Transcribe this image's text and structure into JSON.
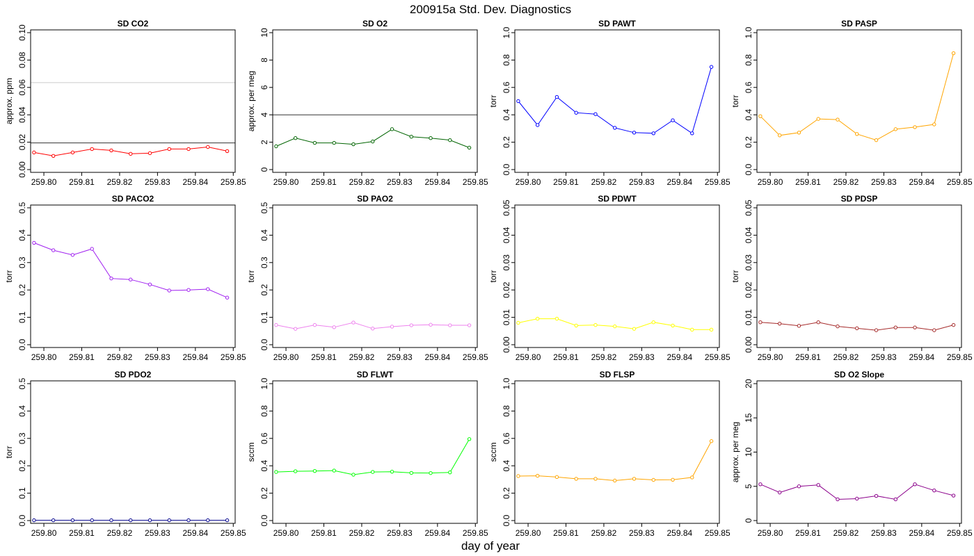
{
  "figure": {
    "title": "200915a   Std. Dev. Diagnostics",
    "xlabel": "day of year"
  },
  "chart_data": [
    {
      "type": "line",
      "title": "SD CO2",
      "ylabel": "approx. ppm",
      "ylim": [
        0,
        0.1
      ],
      "yticks": [
        0,
        0.02,
        0.04,
        0.06,
        0.08,
        0.1
      ],
      "ytick_labels": [
        "0.00",
        "0.02",
        "0.04",
        "0.06",
        "0.08",
        "0.10"
      ],
      "xlim": [
        259.7965,
        259.8505
      ],
      "xticks": [
        259.8,
        259.81,
        259.82,
        259.83,
        259.84,
        259.85
      ],
      "xtick_labels": [
        "259.80",
        "259.81",
        "259.82",
        "259.83",
        "259.84",
        "259.85"
      ],
      "hlines": [
        {
          "y": 0.0195,
          "color": "#333333"
        },
        {
          "y": 0.0635,
          "color": "#cccccc"
        }
      ],
      "series": [
        {
          "color": "#ff0000",
          "x": [
            259.7974,
            259.8025,
            259.8076,
            259.8127,
            259.8178,
            259.8229,
            259.828,
            259.8331,
            259.8382,
            259.8433,
            259.8484
          ],
          "y": [
            0.0125,
            0.01,
            0.0125,
            0.015,
            0.014,
            0.0115,
            0.012,
            0.015,
            0.015,
            0.0165,
            0.0135
          ]
        }
      ]
    },
    {
      "type": "line",
      "title": "SD O2",
      "ylabel": "approx. per meg",
      "ylim": [
        0,
        10
      ],
      "yticks": [
        0,
        2,
        4,
        6,
        8,
        10
      ],
      "ytick_labels": [
        "0",
        "2",
        "4",
        "6",
        "8",
        "10"
      ],
      "xlim": [
        259.7965,
        259.8505
      ],
      "xticks": [
        259.8,
        259.81,
        259.82,
        259.83,
        259.84,
        259.85
      ],
      "xtick_labels": [
        "259.80",
        "259.81",
        "259.82",
        "259.83",
        "259.84",
        "259.85"
      ],
      "hlines": [
        {
          "y": 4,
          "color": "#333333"
        }
      ],
      "series": [
        {
          "color": "#006400",
          "x": [
            259.7974,
            259.8025,
            259.8076,
            259.8127,
            259.8178,
            259.8229,
            259.828,
            259.8331,
            259.8382,
            259.8433,
            259.8484
          ],
          "y": [
            1.7,
            2.3,
            1.95,
            1.95,
            1.85,
            2.05,
            2.95,
            2.4,
            2.3,
            2.15,
            1.6
          ]
        }
      ]
    },
    {
      "type": "line",
      "title": "SD PAWT",
      "ylabel": "torr",
      "ylim": [
        0,
        1
      ],
      "yticks": [
        0,
        0.2,
        0.4,
        0.6,
        0.8,
        1.0
      ],
      "ytick_labels": [
        "0.0",
        "0.2",
        "0.4",
        "0.6",
        "0.8",
        "1.0"
      ],
      "xlim": [
        259.7965,
        259.8505
      ],
      "xticks": [
        259.8,
        259.81,
        259.82,
        259.83,
        259.84,
        259.85
      ],
      "xtick_labels": [
        "259.80",
        "259.81",
        "259.82",
        "259.83",
        "259.84",
        "259.85"
      ],
      "hlines": [],
      "series": [
        {
          "color": "#0000ff",
          "x": [
            259.7974,
            259.8025,
            259.8076,
            259.8127,
            259.8178,
            259.8229,
            259.828,
            259.8331,
            259.8382,
            259.8433,
            259.8484
          ],
          "y": [
            0.5,
            0.325,
            0.53,
            0.415,
            0.405,
            0.305,
            0.27,
            0.265,
            0.36,
            0.265,
            0.75
          ]
        }
      ]
    },
    {
      "type": "line",
      "title": "SD PASP",
      "ylabel": "torr",
      "ylim": [
        0,
        1
      ],
      "yticks": [
        0,
        0.2,
        0.4,
        0.6,
        0.8,
        1.0
      ],
      "ytick_labels": [
        "0.0",
        "0.2",
        "0.4",
        "0.6",
        "0.8",
        "1.0"
      ],
      "xlim": [
        259.7965,
        259.8505
      ],
      "xticks": [
        259.8,
        259.81,
        259.82,
        259.83,
        259.84,
        259.85
      ],
      "xtick_labels": [
        "259.80",
        "259.81",
        "259.82",
        "259.83",
        "259.84",
        "259.85"
      ],
      "hlines": [],
      "series": [
        {
          "color": "#ffa500",
          "x": [
            259.7974,
            259.8025,
            259.8076,
            259.8127,
            259.8178,
            259.8229,
            259.828,
            259.8331,
            259.8382,
            259.8433,
            259.8484
          ],
          "y": [
            0.39,
            0.25,
            0.27,
            0.37,
            0.365,
            0.26,
            0.215,
            0.295,
            0.31,
            0.33,
            0.85
          ]
        }
      ]
    },
    {
      "type": "line",
      "title": "SD PACO2",
      "ylabel": "torr",
      "ylim": [
        0,
        0.5
      ],
      "yticks": [
        0,
        0.1,
        0.2,
        0.3,
        0.4,
        0.5
      ],
      "ytick_labels": [
        "0.0",
        "0.1",
        "0.2",
        "0.3",
        "0.4",
        "0.5"
      ],
      "xlim": [
        259.7965,
        259.8505
      ],
      "xticks": [
        259.8,
        259.81,
        259.82,
        259.83,
        259.84,
        259.85
      ],
      "xtick_labels": [
        "259.80",
        "259.81",
        "259.82",
        "259.83",
        "259.84",
        "259.85"
      ],
      "hlines": [],
      "series": [
        {
          "color": "#a020f0",
          "x": [
            259.7974,
            259.8025,
            259.8076,
            259.8127,
            259.8178,
            259.8229,
            259.828,
            259.8331,
            259.8382,
            259.8433,
            259.8484
          ],
          "y": [
            0.372,
            0.345,
            0.328,
            0.35,
            0.242,
            0.238,
            0.22,
            0.198,
            0.2,
            0.203,
            0.172
          ]
        }
      ]
    },
    {
      "type": "line",
      "title": "SD PAO2",
      "ylabel": "torr",
      "ylim": [
        0,
        0.5
      ],
      "yticks": [
        0,
        0.1,
        0.2,
        0.3,
        0.4,
        0.5
      ],
      "ytick_labels": [
        "0.0",
        "0.1",
        "0.2",
        "0.3",
        "0.4",
        "0.5"
      ],
      "xlim": [
        259.7965,
        259.8505
      ],
      "xticks": [
        259.8,
        259.81,
        259.82,
        259.83,
        259.84,
        259.85
      ],
      "xtick_labels": [
        "259.80",
        "259.81",
        "259.82",
        "259.83",
        "259.84",
        "259.85"
      ],
      "hlines": [],
      "series": [
        {
          "color": "#ee82ee",
          "x": [
            259.7974,
            259.8025,
            259.8076,
            259.8127,
            259.8178,
            259.8229,
            259.828,
            259.8331,
            259.8382,
            259.8433,
            259.8484
          ],
          "y": [
            0.072,
            0.058,
            0.072,
            0.064,
            0.081,
            0.059,
            0.066,
            0.071,
            0.073,
            0.071,
            0.071
          ]
        }
      ]
    },
    {
      "type": "line",
      "title": "SD PDWT",
      "ylabel": "torr",
      "ylim": [
        0,
        0.05
      ],
      "yticks": [
        0,
        0.01,
        0.02,
        0.03,
        0.04,
        0.05
      ],
      "ytick_labels": [
        "0.00",
        "0.01",
        "0.02",
        "0.03",
        "0.04",
        "0.05"
      ],
      "xlim": [
        259.7965,
        259.8505
      ],
      "xticks": [
        259.8,
        259.81,
        259.82,
        259.83,
        259.84,
        259.85
      ],
      "xtick_labels": [
        "259.80",
        "259.81",
        "259.82",
        "259.83",
        "259.84",
        "259.85"
      ],
      "hlines": [],
      "series": [
        {
          "color": "#ffff00",
          "x": [
            259.7974,
            259.8025,
            259.8076,
            259.8127,
            259.8178,
            259.8229,
            259.828,
            259.8331,
            259.8382,
            259.8433,
            259.8484
          ],
          "y": [
            0.008,
            0.0095,
            0.0095,
            0.007,
            0.0072,
            0.0067,
            0.0058,
            0.0082,
            0.007,
            0.0055,
            0.0055
          ]
        }
      ]
    },
    {
      "type": "line",
      "title": "SD PDSP",
      "ylabel": "torr",
      "ylim": [
        0,
        0.05
      ],
      "yticks": [
        0,
        0.01,
        0.02,
        0.03,
        0.04,
        0.05
      ],
      "ytick_labels": [
        "0.00",
        "0.01",
        "0.02",
        "0.03",
        "0.04",
        "0.05"
      ],
      "xlim": [
        259.7965,
        259.8505
      ],
      "xticks": [
        259.8,
        259.81,
        259.82,
        259.83,
        259.84,
        259.85
      ],
      "xtick_labels": [
        "259.80",
        "259.81",
        "259.82",
        "259.83",
        "259.84",
        "259.85"
      ],
      "hlines": [],
      "series": [
        {
          "color": "#a52a2a",
          "x": [
            259.7974,
            259.8025,
            259.8076,
            259.8127,
            259.8178,
            259.8229,
            259.828,
            259.8331,
            259.8382,
            259.8433,
            259.8484
          ],
          "y": [
            0.0082,
            0.0077,
            0.0069,
            0.0082,
            0.0067,
            0.006,
            0.0053,
            0.0063,
            0.0063,
            0.0053,
            0.0072
          ]
        }
      ]
    },
    {
      "type": "line",
      "title": "SD PDO2",
      "ylabel": "torr",
      "ylim": [
        0,
        0.5
      ],
      "yticks": [
        0,
        0.1,
        0.2,
        0.3,
        0.4,
        0.5
      ],
      "ytick_labels": [
        "0.0",
        "0.1",
        "0.2",
        "0.3",
        "0.4",
        "0.5"
      ],
      "xlim": [
        259.7965,
        259.8505
      ],
      "xticks": [
        259.8,
        259.81,
        259.82,
        259.83,
        259.84,
        259.85
      ],
      "xtick_labels": [
        "259.80",
        "259.81",
        "259.82",
        "259.83",
        "259.84",
        "259.85"
      ],
      "hlines": [],
      "series": [
        {
          "color": "#00008b",
          "x": [
            259.7974,
            259.8025,
            259.8076,
            259.8127,
            259.8178,
            259.8229,
            259.828,
            259.8331,
            259.8382,
            259.8433,
            259.8484
          ],
          "y": [
            0.001,
            0.001,
            0.001,
            0.001,
            0.001,
            0.001,
            0.001,
            0.001,
            0.001,
            0.001,
            0.001
          ]
        }
      ]
    },
    {
      "type": "line",
      "title": "SD FLWT",
      "ylabel": "sccm",
      "ylim": [
        0,
        1
      ],
      "yticks": [
        0,
        0.2,
        0.4,
        0.6,
        0.8,
        1.0
      ],
      "ytick_labels": [
        "0.0",
        "0.2",
        "0.4",
        "0.6",
        "0.8",
        "1.0"
      ],
      "xlim": [
        259.7965,
        259.8505
      ],
      "xticks": [
        259.8,
        259.81,
        259.82,
        259.83,
        259.84,
        259.85
      ],
      "xtick_labels": [
        "259.80",
        "259.81",
        "259.82",
        "259.83",
        "259.84",
        "259.85"
      ],
      "hlines": [],
      "series": [
        {
          "color": "#00ff00",
          "x": [
            259.7974,
            259.8025,
            259.8076,
            259.8127,
            259.8178,
            259.8229,
            259.828,
            259.8331,
            259.8382,
            259.8433,
            259.8484
          ],
          "y": [
            0.355,
            0.36,
            0.362,
            0.365,
            0.335,
            0.355,
            0.357,
            0.348,
            0.347,
            0.352,
            0.595
          ]
        }
      ]
    },
    {
      "type": "line",
      "title": "SD FLSP",
      "ylabel": "sccm",
      "ylim": [
        0,
        1
      ],
      "yticks": [
        0,
        0.2,
        0.4,
        0.6,
        0.8,
        1.0
      ],
      "ytick_labels": [
        "0.0",
        "0.2",
        "0.4",
        "0.6",
        "0.8",
        "1.0"
      ],
      "xlim": [
        259.7965,
        259.8505
      ],
      "xticks": [
        259.8,
        259.81,
        259.82,
        259.83,
        259.84,
        259.85
      ],
      "xtick_labels": [
        "259.80",
        "259.81",
        "259.82",
        "259.83",
        "259.84",
        "259.85"
      ],
      "hlines": [],
      "series": [
        {
          "color": "#ffa500",
          "x": [
            259.7974,
            259.8025,
            259.8076,
            259.8127,
            259.8178,
            259.8229,
            259.828,
            259.8331,
            259.8382,
            259.8433,
            259.8484
          ],
          "y": [
            0.325,
            0.327,
            0.318,
            0.305,
            0.305,
            0.292,
            0.305,
            0.297,
            0.298,
            0.315,
            0.58
          ]
        }
      ]
    },
    {
      "type": "line",
      "title": "SD O2 Slope",
      "ylabel": "approx. per meg",
      "ylim": [
        0,
        20
      ],
      "yticks": [
        0,
        5,
        10,
        15,
        20
      ],
      "ytick_labels": [
        "0",
        "5",
        "10",
        "15",
        "20"
      ],
      "xlim": [
        259.7965,
        259.8505
      ],
      "xticks": [
        259.8,
        259.81,
        259.82,
        259.83,
        259.84,
        259.85
      ],
      "xtick_labels": [
        "259.80",
        "259.81",
        "259.82",
        "259.83",
        "259.84",
        "259.85"
      ],
      "hlines": [],
      "series": [
        {
          "color": "#8b008b",
          "x": [
            259.7974,
            259.8025,
            259.8076,
            259.8127,
            259.8178,
            259.8229,
            259.828,
            259.8331,
            259.8382,
            259.8433,
            259.8484
          ],
          "y": [
            5.3,
            4.1,
            5.0,
            5.2,
            3.1,
            3.2,
            3.6,
            3.1,
            5.3,
            4.4,
            3.65
          ]
        }
      ]
    }
  ]
}
